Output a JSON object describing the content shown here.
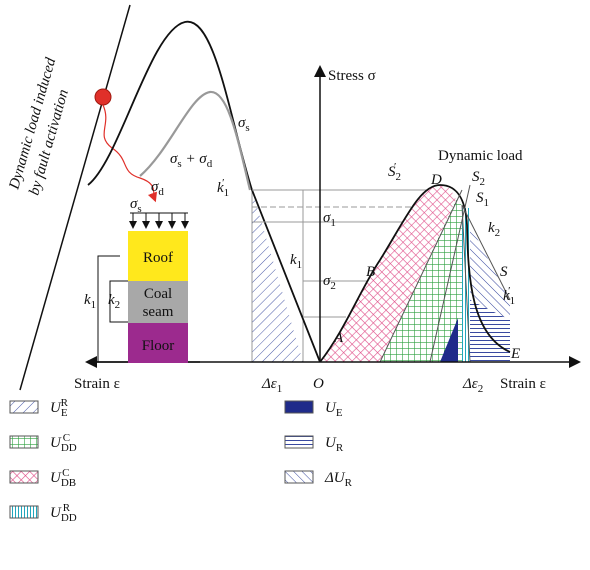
{
  "fault": {
    "line1": "Dynamic load induced",
    "line2": "by fault activation"
  },
  "axis": {
    "stress": "Stress σ",
    "strain_left": "Strain ε",
    "strain_right": "Strain ε"
  },
  "dynamic_load": "Dynamic load",
  "block": {
    "roof": "Roof",
    "coal1": "Coal",
    "coal2": "seam",
    "floor": "Floor"
  },
  "labels": [
    [
      {
        "t": "σ"
      },
      {
        "sub": "s"
      }
    ],
    [
      {
        "t": "σ"
      },
      {
        "sub": "s"
      },
      {
        "t": " + σ"
      },
      {
        "sub": "d"
      }
    ],
    [
      {
        "t": "σ"
      },
      {
        "sub": "d"
      }
    ],
    [
      {
        "t": "σ"
      },
      {
        "sub": "s"
      }
    ],
    [
      {
        "t": "k"
      },
      {
        "sub": "1"
      },
      {
        "sup": "′"
      }
    ],
    [
      {
        "t": "k"
      },
      {
        "sub": "1"
      }
    ],
    [
      {
        "t": "σ"
      },
      {
        "sub": "1"
      }
    ],
    [
      {
        "t": "σ"
      },
      {
        "sub": "2"
      }
    ],
    [
      {
        "t": "A"
      }
    ],
    [
      {
        "t": "B"
      }
    ],
    [
      {
        "t": "D"
      }
    ],
    [
      {
        "t": "S"
      },
      {
        "sub": "2"
      },
      {
        "sup": "′"
      }
    ],
    [
      {
        "t": "S"
      },
      {
        "sub": "2"
      }
    ],
    [
      {
        "t": "S"
      },
      {
        "sub": "1"
      }
    ],
    [
      {
        "t": "k"
      },
      {
        "sub": "2"
      }
    ],
    [
      {
        "t": "S"
      }
    ],
    [
      {
        "t": "k"
      },
      {
        "sub": "1"
      },
      {
        "sup": "′"
      }
    ],
    [
      {
        "t": "E"
      }
    ],
    [
      {
        "t": "O"
      }
    ],
    [
      {
        "t": "Δε"
      },
      {
        "sub": "1"
      }
    ],
    [
      {
        "t": "Δε"
      },
      {
        "sub": "2"
      }
    ],
    [
      {
        "t": "k"
      },
      {
        "sub": "1"
      }
    ],
    [
      {
        "t": "k"
      },
      {
        "sub": "2"
      }
    ]
  ],
  "legend": [
    [
      {
        "t": "U"
      },
      {
        "sub": "E"
      },
      {
        "sup": "R"
      }
    ],
    [
      {
        "t": "U"
      },
      {
        "sub": "DD"
      },
      {
        "sup": "C"
      }
    ],
    [
      {
        "t": "U"
      },
      {
        "sub": "DB"
      },
      {
        "sup": "C"
      }
    ],
    [
      {
        "t": "U"
      },
      {
        "sub": "DD"
      },
      {
        "sup": "R"
      }
    ],
    [
      {
        "t": "U"
      },
      {
        "sub": "E"
      }
    ],
    [
      {
        "t": "U"
      },
      {
        "sub": "R"
      }
    ],
    [
      {
        "t": "ΔU"
      },
      {
        "sub": "R"
      }
    ]
  ]
}
